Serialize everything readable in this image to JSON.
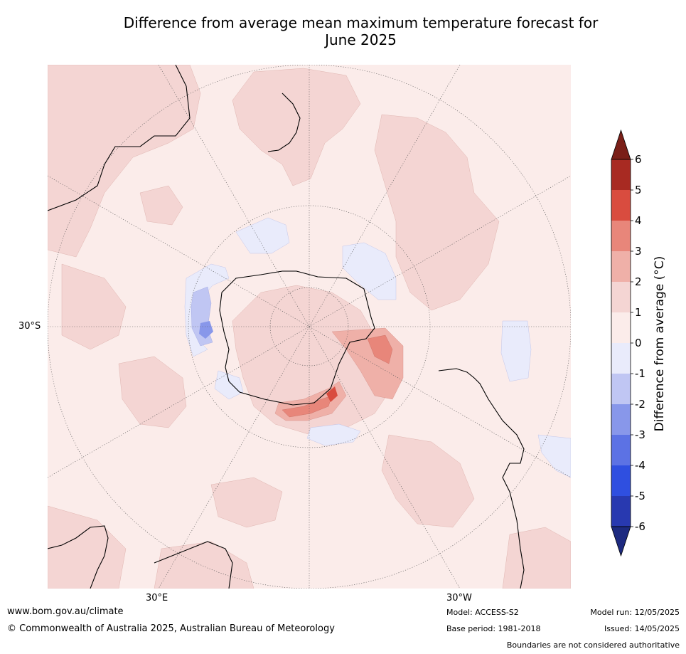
{
  "title_line1": "Difference from average mean maximum temperature forecast for",
  "title_line2": "June 2025",
  "axis_labels": {
    "lat_30s": "30°S",
    "lon_30e": "30°E",
    "lon_30w": "30°W"
  },
  "colorbar": {
    "title": "Difference from average (°C)",
    "ticks": [
      "6",
      "5",
      "4",
      "3",
      "2",
      "1",
      "0",
      "-1",
      "-2",
      "-3",
      "-4",
      "-5",
      "-6"
    ],
    "colors": [
      "#a82a22",
      "#d94c3f",
      "#e8867a",
      "#efb0a8",
      "#f4d5d3",
      "#fbecea",
      "#e9ebfb",
      "#c0c6f3",
      "#8897ea",
      "#5c72e4",
      "#2f4fe0",
      "#2839b0"
    ],
    "over_color": "#7a1f18",
    "under_color": "#1d2a80"
  },
  "footer": {
    "website": "www.bom.gov.au/climate",
    "copyright": "© Commonwealth of Australia 2025, Australian Bureau of Meteorology",
    "model": "Model: ACCESS-S2",
    "base_period": "Base period: 1981-2018",
    "model_run": "Model run: 12/05/2025",
    "issued": "Issued: 14/05/2025",
    "boundaries_note": "Boundaries are not considered authoritative"
  }
}
